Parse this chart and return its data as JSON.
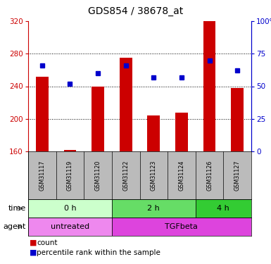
{
  "title": "GDS854 / 38678_at",
  "samples": [
    "GSM31117",
    "GSM31119",
    "GSM31120",
    "GSM31122",
    "GSM31123",
    "GSM31124",
    "GSM31126",
    "GSM31127"
  ],
  "counts": [
    252,
    162,
    240,
    275,
    204,
    208,
    320,
    238
  ],
  "percentile_ranks": [
    66,
    52,
    60,
    66,
    57,
    57,
    70,
    62
  ],
  "ylim_left": [
    160,
    320
  ],
  "ylim_right": [
    0,
    100
  ],
  "yticks_left": [
    160,
    200,
    240,
    280,
    320
  ],
  "yticks_right": [
    0,
    25,
    50,
    75,
    100
  ],
  "ytick_labels_right": [
    "0",
    "25",
    "50",
    "75",
    "100%"
  ],
  "grid_lines": [
    200,
    240,
    280
  ],
  "time_groups": [
    {
      "label": "0 h",
      "start": 0,
      "end": 3,
      "color": "#ccffcc"
    },
    {
      "label": "2 h",
      "start": 3,
      "end": 6,
      "color": "#66dd66"
    },
    {
      "label": "4 h",
      "start": 6,
      "end": 8,
      "color": "#33cc33"
    }
  ],
  "agent_groups": [
    {
      "label": "untreated",
      "start": 0,
      "end": 3,
      "color": "#ee88ee"
    },
    {
      "label": "TGFbeta",
      "start": 3,
      "end": 8,
      "color": "#dd44dd"
    }
  ],
  "bar_color": "#cc0000",
  "dot_color": "#0000cc",
  "axis_left_color": "#cc0000",
  "axis_right_color": "#0000cc",
  "bg_color": "#ffffff",
  "cell_bg_color": "#bbbbbb",
  "legend_items": [
    {
      "color": "#cc0000",
      "label": "count"
    },
    {
      "color": "#0000cc",
      "label": "percentile rank within the sample"
    }
  ]
}
